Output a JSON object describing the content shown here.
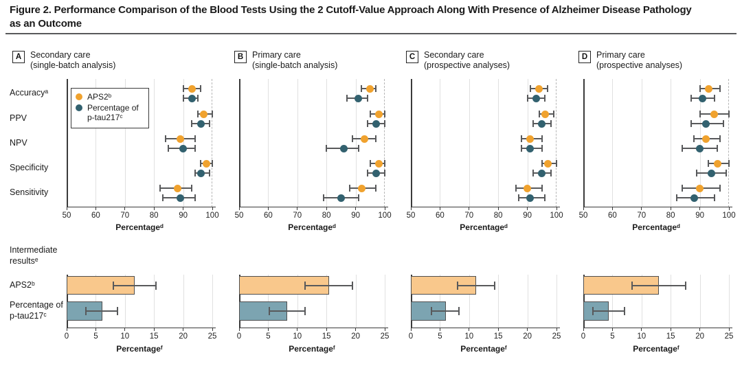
{
  "figure": {
    "title_line1": "Figure 2. Performance Comparison of the Blood Tests Using the 2 Cutoff-Value Approach Along With Presence of Alzheimer Disease Pathology",
    "title_line2": "as an Outcome"
  },
  "colors": {
    "aps2": "#F0A22E",
    "ptau": "#32616F",
    "aps2_bar_fill": "#F9C88C",
    "ptau_bar_fill": "#7CA4B1",
    "bar_border": "#4E4E4E",
    "whisker": "#58595B",
    "gridline": "#E0E0E0",
    "dashed_line": "#B5B5B5",
    "axis": "#3A3A3A",
    "text": "#1E1E1E"
  },
  "left_labels": {
    "top_categories": [
      "Accuracyᵃ",
      "PPV",
      "NPV",
      "Specificity",
      "Sensitivity"
    ],
    "bottom_section": "Intermediate resultsᵉ",
    "bottom_categories": [
      "APS2ᵇ",
      "Percentage of p-tau217ᶜ"
    ]
  },
  "legend": {
    "items": [
      {
        "label": "APS2ᵇ",
        "series": "aps2"
      },
      {
        "label": "Percentage of p-tau217ᶜ",
        "series": "ptau"
      }
    ]
  },
  "chart_data": [
    {
      "panel": "A",
      "title_line1": "Secondary care",
      "title_line2": "(single-batch analysis)",
      "top": {
        "type": "scatter",
        "subtype": "dot-with-95ci-horizontal",
        "categories": [
          "Accuracyᵃ",
          "PPV",
          "NPV",
          "Specificity",
          "Sensitivity"
        ],
        "xlabel": "Percentageᵈ",
        "xlim": [
          50,
          100
        ],
        "xticks": [
          50,
          60,
          70,
          80,
          90,
          100
        ],
        "reference_line_x": 100,
        "grid": true,
        "legend_position": "upper-left",
        "series": [
          {
            "name": "APS2ᵇ",
            "points": [
              [
                93,
                90,
                96
              ],
              [
                97,
                95,
                100
              ],
              [
                89,
                84,
                94
              ],
              [
                98,
                96,
                100
              ],
              [
                88,
                82,
                93
              ]
            ]
          },
          {
            "name": "Percentage of p-tau217ᶜ",
            "points": [
              [
                93,
                90,
                95
              ],
              [
                96,
                93,
                99
              ],
              [
                90,
                85,
                94
              ],
              [
                96,
                94,
                99
              ],
              [
                89,
                83,
                94
              ]
            ]
          }
        ]
      },
      "bottom": {
        "type": "bar",
        "subtype": "horizontal-bar-with-95ci",
        "categories": [
          "APS2ᵇ",
          "Percentage of p-tau217ᶜ"
        ],
        "xlabel": "Percentageᶠ",
        "xlim": [
          0,
          25
        ],
        "xticks": [
          0,
          5,
          10,
          15,
          20,
          25
        ],
        "grid": true,
        "bars": [
          [
            11.7,
            8.0,
            15.3
          ],
          [
            6.1,
            3.3,
            8.7
          ]
        ]
      }
    },
    {
      "panel": "B",
      "title_line1": "Primary care",
      "title_line2": "(single-batch analysis)",
      "top": {
        "type": "scatter",
        "subtype": "dot-with-95ci-horizontal",
        "categories": [
          "Accuracyᵃ",
          "PPV",
          "NPV",
          "Specificity",
          "Sensitivity"
        ],
        "xlabel": "Percentageᵈ",
        "xlim": [
          50,
          100
        ],
        "xticks": [
          50,
          60,
          70,
          80,
          90,
          100
        ],
        "reference_line_x": 100,
        "grid": true,
        "series": [
          {
            "name": "APS2ᵇ",
            "points": [
              [
                95,
                92,
                97
              ],
              [
                98,
                95,
                100
              ],
              [
                93,
                89,
                97
              ],
              [
                98,
                95,
                100
              ],
              [
                92,
                88,
                97
              ]
            ]
          },
          {
            "name": "Percentage of p-tau217ᶜ",
            "points": [
              [
                91,
                87,
                94
              ],
              [
                97,
                94,
                100
              ],
              [
                86,
                80,
                91
              ],
              [
                97,
                94,
                100
              ],
              [
                85,
                79,
                91
              ]
            ]
          }
        ]
      },
      "bottom": {
        "type": "bar",
        "subtype": "horizontal-bar-with-95ci",
        "categories": [
          "APS2ᵇ",
          "Percentage of p-tau217ᶜ"
        ],
        "xlabel": "Percentageᶠ",
        "xlim": [
          0,
          25
        ],
        "xticks": [
          0,
          5,
          10,
          15,
          20,
          25
        ],
        "grid": true,
        "bars": [
          [
            15.4,
            11.3,
            19.5
          ],
          [
            8.2,
            5.2,
            11.3
          ]
        ]
      }
    },
    {
      "panel": "C",
      "title_line1": "Secondary care",
      "title_line2": "(prospective analyses)",
      "top": {
        "type": "scatter",
        "subtype": "dot-with-95ci-horizontal",
        "categories": [
          "Accuracyᵃ",
          "PPV",
          "NPV",
          "Specificity",
          "Sensitivity"
        ],
        "xlabel": "Percentageᵈ",
        "xlim": [
          50,
          100
        ],
        "xticks": [
          50,
          60,
          70,
          80,
          90,
          100
        ],
        "reference_line_x": 100,
        "grid": true,
        "series": [
          {
            "name": "APS2ᵇ",
            "points": [
              [
                94,
                91,
                97
              ],
              [
                96,
                94,
                99
              ],
              [
                91,
                88,
                95
              ],
              [
                97,
                95,
                100
              ],
              [
                90,
                86,
                95
              ]
            ]
          },
          {
            "name": "Percentage of p-tau217ᶜ",
            "points": [
              [
                93,
                90,
                96
              ],
              [
                95,
                92,
                98
              ],
              [
                91,
                88,
                95
              ],
              [
                95,
                92,
                98
              ],
              [
                91,
                87,
                96
              ]
            ]
          }
        ]
      },
      "bottom": {
        "type": "bar",
        "subtype": "horizontal-bar-with-95ci",
        "categories": [
          "APS2ᵇ",
          "Percentage of p-tau217ᶜ"
        ],
        "xlabel": "Percentageᶠ",
        "xlim": [
          0,
          25
        ],
        "xticks": [
          0,
          5,
          10,
          15,
          20,
          25
        ],
        "grid": true,
        "bars": [
          [
            11.2,
            8.0,
            14.4
          ],
          [
            6.0,
            3.5,
            8.2
          ]
        ]
      }
    },
    {
      "panel": "D",
      "title_line1": "Primary care",
      "title_line2": "(prospective analyses)",
      "top": {
        "type": "scatter",
        "subtype": "dot-with-95ci-horizontal",
        "categories": [
          "Accuracyᵃ",
          "PPV",
          "NPV",
          "Specificity",
          "Sensitivity"
        ],
        "xlabel": "Percentageᵈ",
        "xlim": [
          50,
          100
        ],
        "xticks": [
          50,
          60,
          70,
          80,
          90,
          100
        ],
        "reference_line_x": 100,
        "grid": true,
        "series": [
          {
            "name": "APS2ᵇ",
            "points": [
              [
                93,
                90,
                97
              ],
              [
                95,
                90,
                100
              ],
              [
                92,
                88,
                97
              ],
              [
                96,
                93,
                100
              ],
              [
                90,
                84,
                97
              ]
            ]
          },
          {
            "name": "Percentage of p-tau217ᶜ",
            "points": [
              [
                91,
                87,
                95
              ],
              [
                92,
                87,
                98
              ],
              [
                90,
                84,
                96
              ],
              [
                94,
                89,
                99
              ],
              [
                88,
                82,
                95
              ]
            ]
          }
        ]
      },
      "bottom": {
        "type": "bar",
        "subtype": "horizontal-bar-with-95ci",
        "categories": [
          "APS2ᵇ",
          "Percentage of p-tau217ᶜ"
        ],
        "xlabel": "Percentageᶠ",
        "xlim": [
          0,
          25
        ],
        "xticks": [
          0,
          5,
          10,
          15,
          20,
          25
        ],
        "grid": true,
        "bars": [
          [
            13.0,
            8.4,
            17.6
          ],
          [
            4.4,
            1.6,
            7.1
          ]
        ]
      }
    }
  ]
}
